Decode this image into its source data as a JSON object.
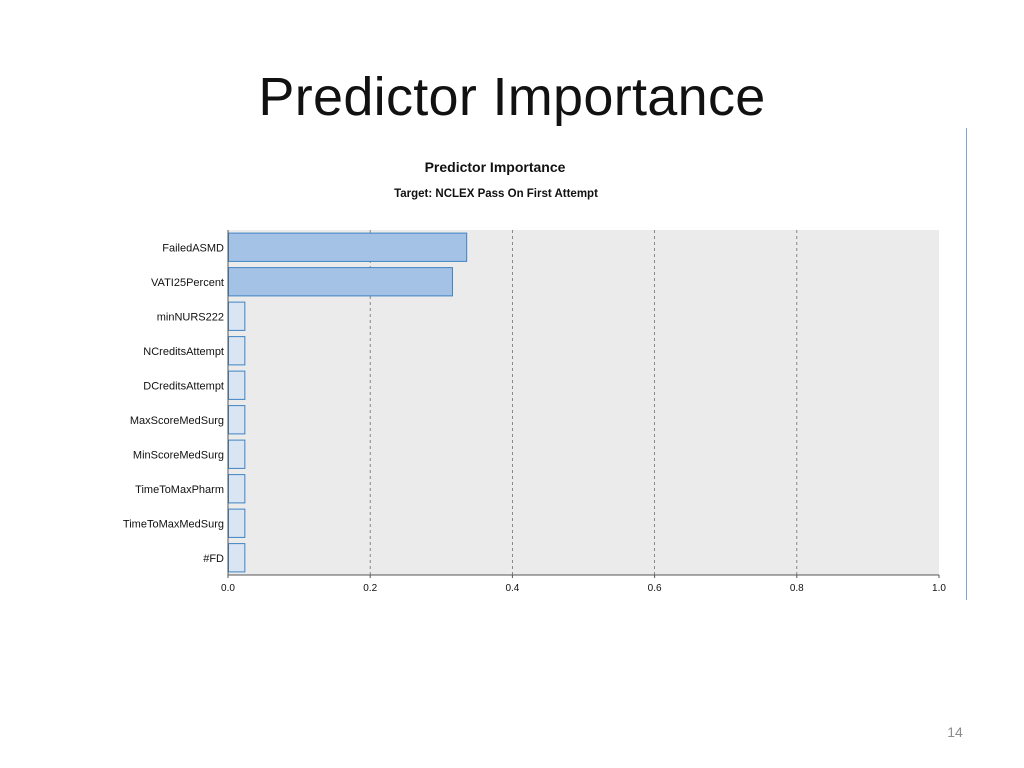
{
  "slide": {
    "title": "Predictor Importance",
    "page_number": "14"
  },
  "chart_data": {
    "type": "bar",
    "orientation": "horizontal",
    "title": "Predictor Importance",
    "subtitle": "Target: NCLEX Pass On First Attempt",
    "xlabel": "",
    "ylabel": "",
    "categories": [
      "FailedASMD",
      "VATI25Percent",
      "minNURS222",
      "NCreditsAttempt",
      "DCreditsAttempt",
      "MaxScoreMedSurg",
      "MinScoreMedSurg",
      "TimeToMaxPharm",
      "TimeToMaxMedSurg",
      "#FD"
    ],
    "values": [
      0.335,
      0.315,
      0.023,
      0.023,
      0.023,
      0.023,
      0.023,
      0.023,
      0.023,
      0.023
    ],
    "xlim": [
      0.0,
      1.0
    ],
    "xticks": [
      "0.0",
      "0.2",
      "0.4",
      "0.6",
      "0.8",
      "1.0"
    ],
    "grid": "vertical dashed",
    "colors": {
      "plot_background": "#ebebeb",
      "bar_fill_major": "#a4c1e6",
      "bar_fill_minor": "#dae5f3",
      "bar_stroke": "#3f83c5"
    }
  }
}
